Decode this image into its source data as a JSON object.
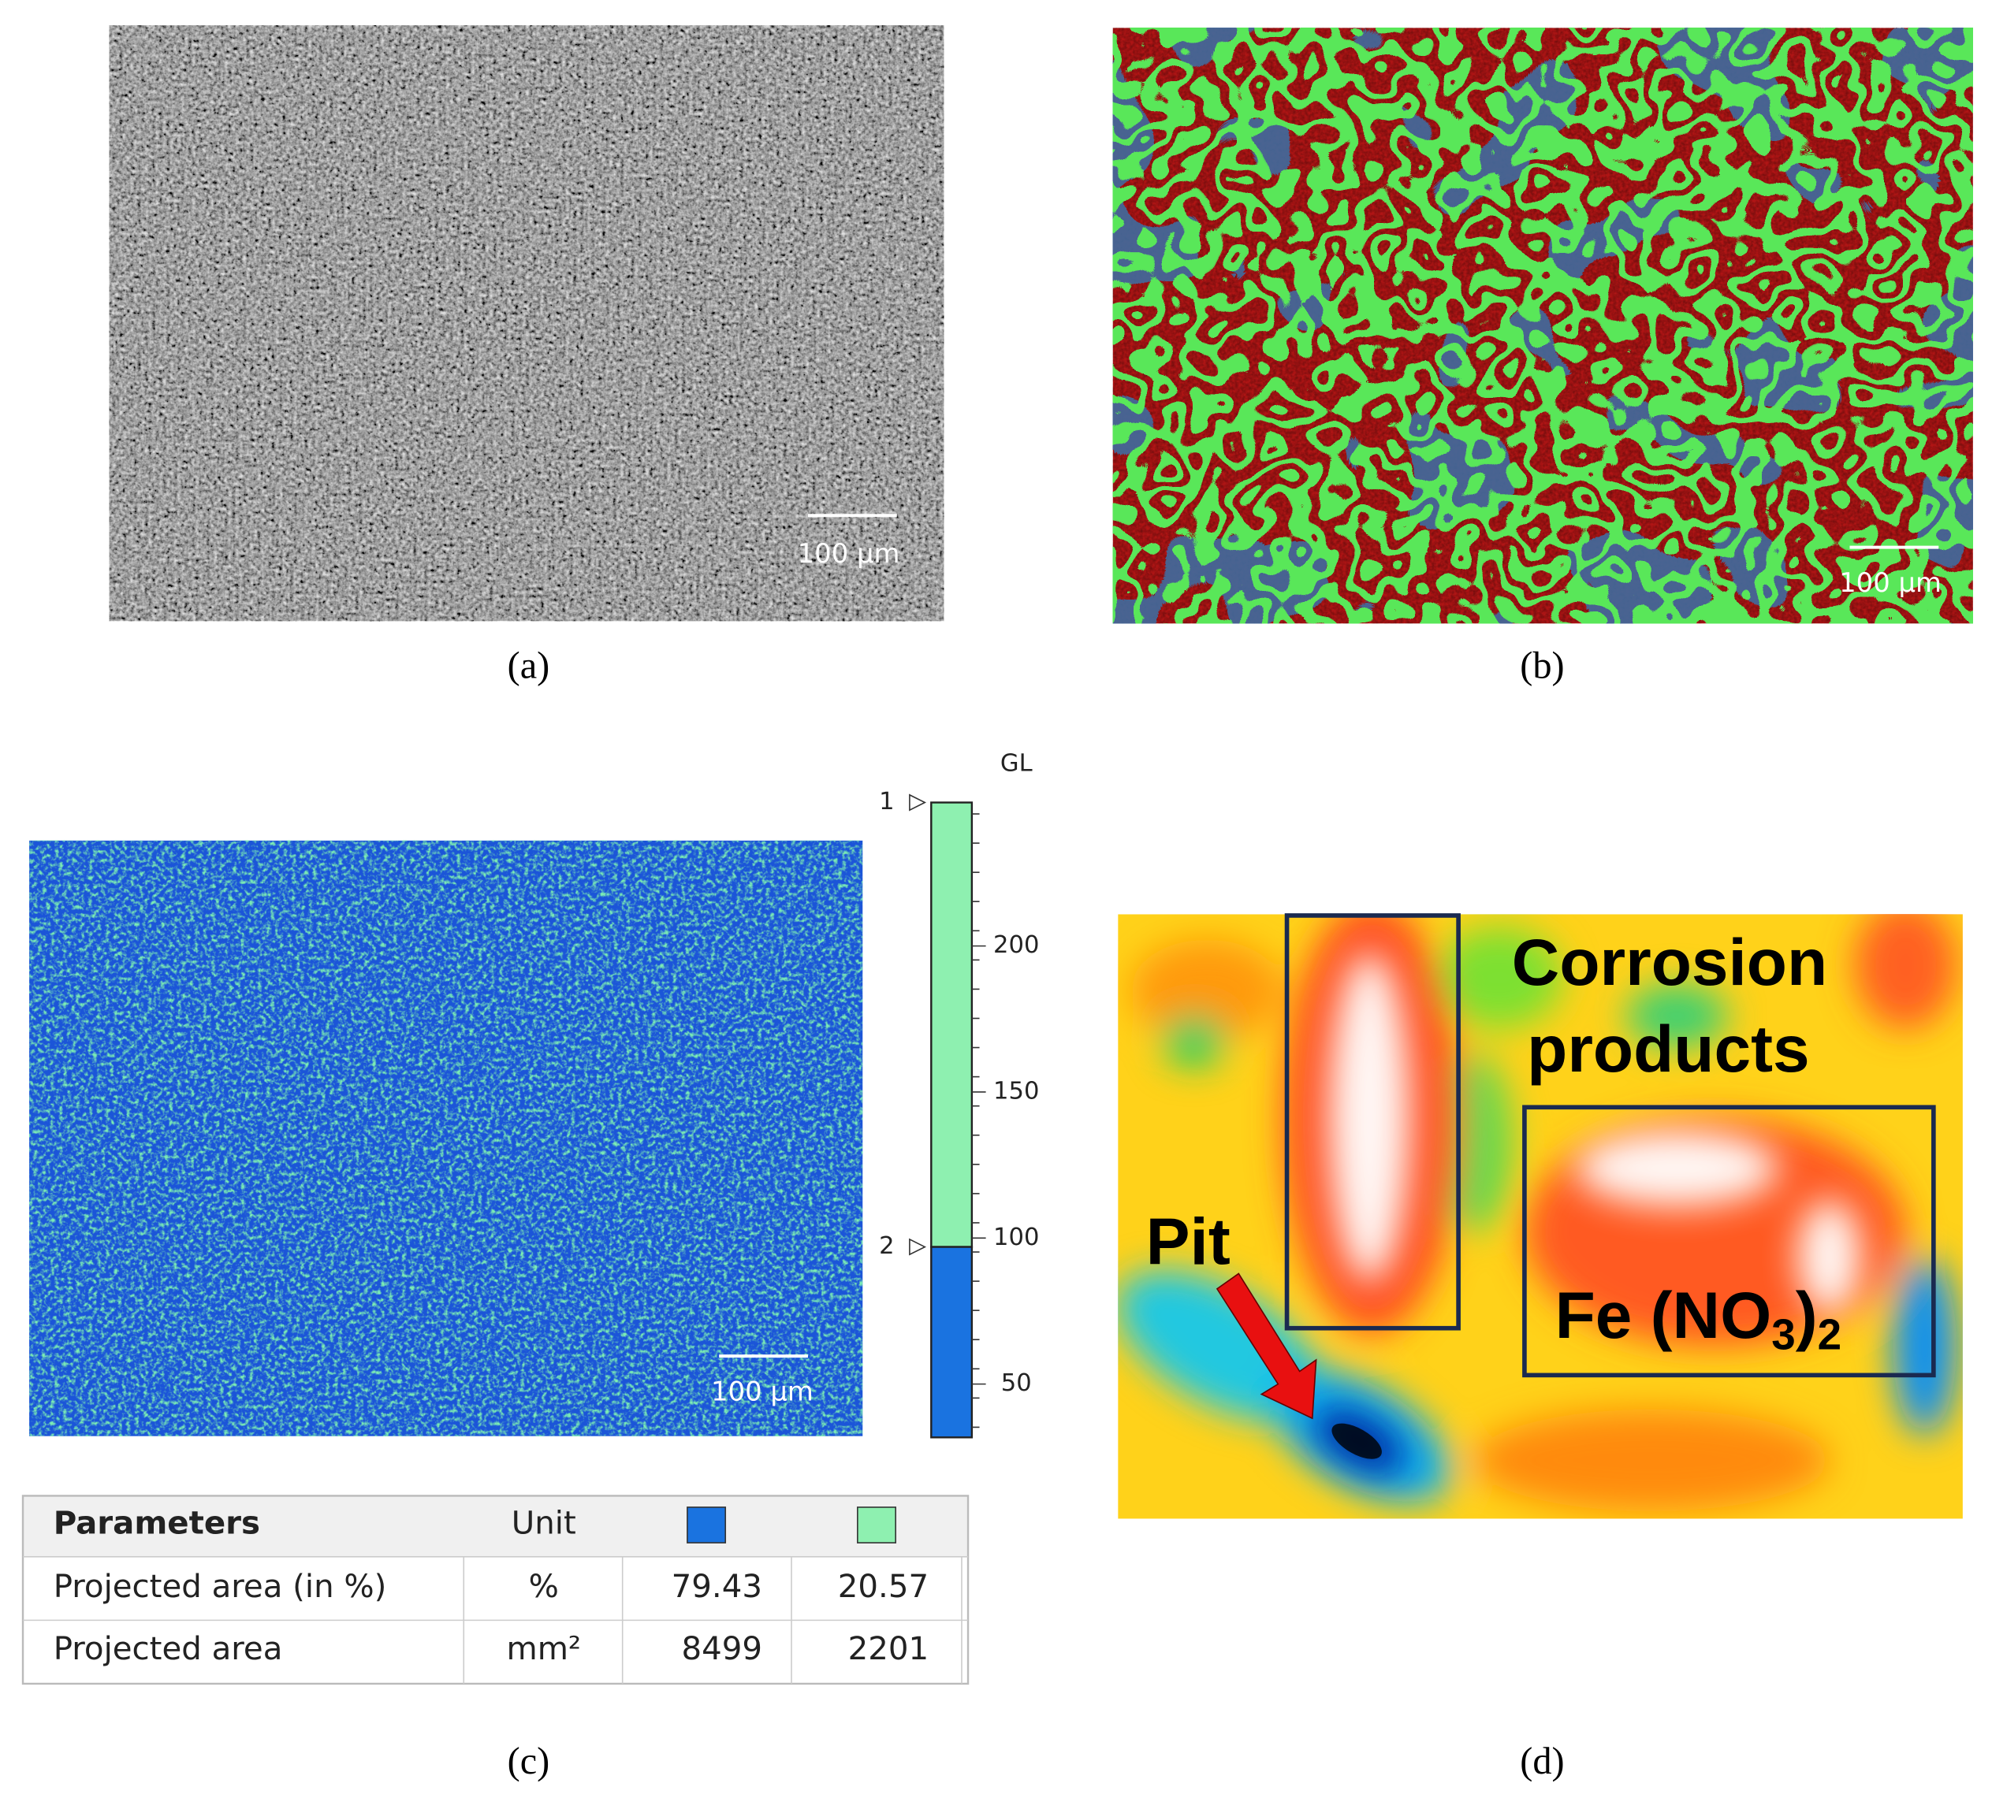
{
  "panels": [
    {
      "label": "(a)",
      "scale_bar": "100 µm"
    },
    {
      "label": "(b)",
      "scale_bar": "100 µm"
    },
    {
      "label": "(c)",
      "scale_bar": "100 µm",
      "colorbar": {
        "title": "GL",
        "markers": [
          "1",
          "2"
        ],
        "ticks": [
          200,
          150,
          100,
          50
        ]
      },
      "table": {
        "header": [
          "Parameters",
          "Unit"
        ],
        "rows": [
          [
            "Projected area (in %)",
            "%",
            79.43,
            20.57
          ],
          [
            "Projected area",
            "mm²",
            8499,
            2201
          ]
        ]
      }
    },
    {
      "label": "(d)",
      "annotations": {
        "corrosion": [
          "Corrosion",
          "products"
        ],
        "pit": "Pit",
        "formula": [
          "Fe (NO",
          "3",
          ")",
          "2"
        ]
      }
    }
  ]
}
